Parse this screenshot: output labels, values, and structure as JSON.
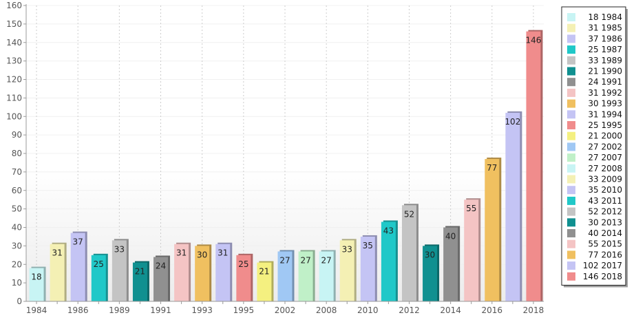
{
  "chart_data": {
    "type": "bar",
    "title": "",
    "xlabel": "",
    "ylabel": "",
    "ylim": [
      0,
      160
    ],
    "yticks": [
      0,
      10,
      20,
      30,
      40,
      50,
      60,
      70,
      80,
      90,
      100,
      110,
      120,
      130,
      140,
      150,
      160
    ],
    "categories": [
      "1984",
      "1985",
      "1986",
      "1987",
      "1989",
      "1990",
      "1991",
      "1992",
      "1993",
      "1994",
      "1995",
      "2000",
      "2002",
      "2007",
      "2008",
      "2009",
      "2010",
      "2011",
      "2012",
      "2013",
      "2014",
      "2015",
      "2016",
      "2017",
      "2018"
    ],
    "values": [
      18,
      31,
      37,
      25,
      33,
      21,
      24,
      31,
      30,
      31,
      25,
      21,
      27,
      27,
      27,
      33,
      35,
      43,
      52,
      30,
      40,
      55,
      77,
      102,
      146
    ],
    "colors": [
      "#c8f4f4",
      "#f4f0b4",
      "#c4c4f4",
      "#20c8c8",
      "#c4c4c4",
      "#109090",
      "#909090",
      "#f4c4c4",
      "#f0c060",
      "#c4c4f4",
      "#f08c8c",
      "#f4f080",
      "#a0c8f4",
      "#c0f0c8",
      "#c8f4f4",
      "#f4f0b4",
      "#c4c4f4",
      "#20c8c8",
      "#c4c4c4",
      "#109090",
      "#909090",
      "#f4c4c4",
      "#f0c060",
      "#c4c4f4",
      "#f08c8c"
    ],
    "x_tick_labels": [
      "1984",
      "",
      "1986",
      "",
      "1989",
      "",
      "1991",
      "",
      "1993",
      "",
      "1995",
      "",
      "2002",
      "",
      "2008",
      "",
      "2010",
      "",
      "2012",
      "",
      "2014",
      "",
      "2016",
      "",
      "2018"
    ],
    "grid": true,
    "legend_position": "right",
    "legend": [
      {
        "value": "18",
        "label": "1984"
      },
      {
        "value": "31",
        "label": "1985"
      },
      {
        "value": "37",
        "label": "1986"
      },
      {
        "value": "25",
        "label": "1987"
      },
      {
        "value": "33",
        "label": "1989"
      },
      {
        "value": "21",
        "label": "1990"
      },
      {
        "value": "24",
        "label": "1991"
      },
      {
        "value": "31",
        "label": "1992"
      },
      {
        "value": "30",
        "label": "1993"
      },
      {
        "value": "31",
        "label": "1994"
      },
      {
        "value": "25",
        "label": "1995"
      },
      {
        "value": "21",
        "label": "2000"
      },
      {
        "value": "27",
        "label": "2002"
      },
      {
        "value": "27",
        "label": "2007"
      },
      {
        "value": "27",
        "label": "2008"
      },
      {
        "value": "33",
        "label": "2009"
      },
      {
        "value": "35",
        "label": "2010"
      },
      {
        "value": "43",
        "label": "2011"
      },
      {
        "value": "52",
        "label": "2012"
      },
      {
        "value": "30",
        "label": "2013"
      },
      {
        "value": "40",
        "label": "2014"
      },
      {
        "value": "55",
        "label": "2015"
      },
      {
        "value": "77",
        "label": "2016"
      },
      {
        "value": "102",
        "label": "2017"
      },
      {
        "value": "146",
        "label": "2018"
      }
    ]
  }
}
